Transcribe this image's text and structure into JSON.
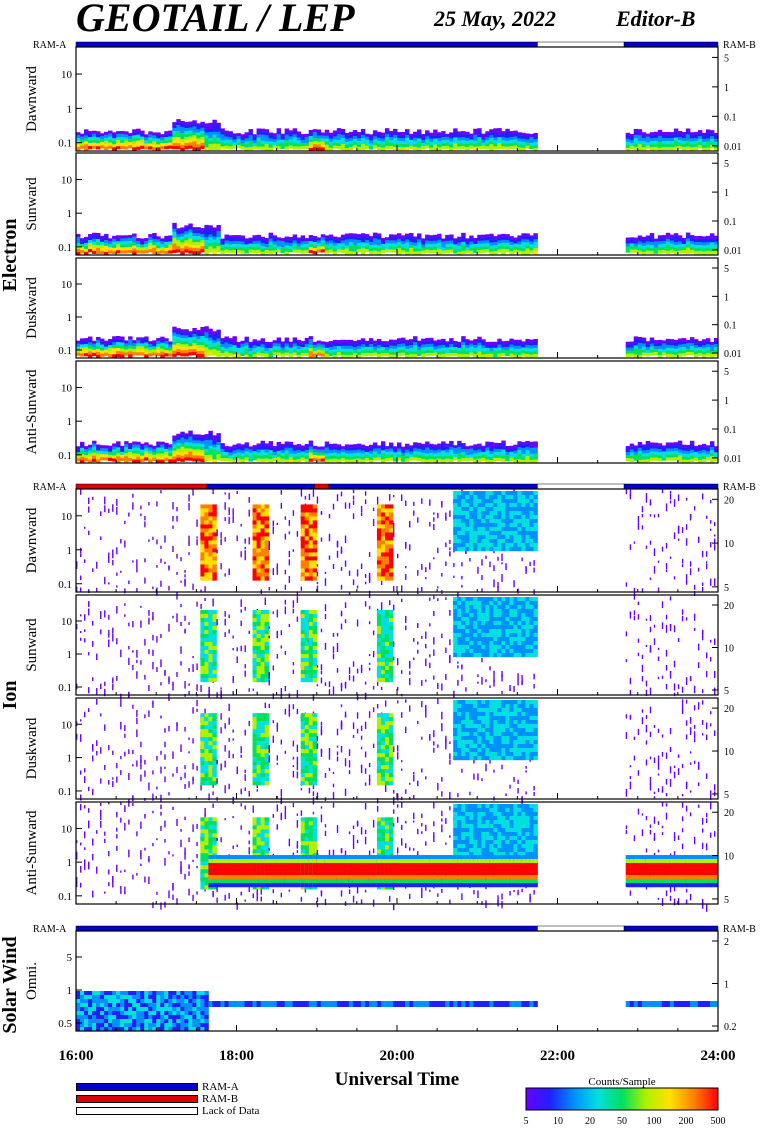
{
  "header": {
    "title": "GEOTAIL / LEP",
    "date": "25 May, 2022",
    "editor": "Editor-B"
  },
  "ram_labels": {
    "left": "RAM-A",
    "right": "RAM-B"
  },
  "group_labels": [
    "Electron",
    "Ion",
    "Solar Wind"
  ],
  "x_axis": {
    "label": "Universal Time",
    "ticks": [
      "16:00",
      "18:00",
      "20:00",
      "22:00",
      "24:00"
    ]
  },
  "legend": {
    "items": [
      {
        "label": "RAM-A",
        "color": "#0000d0"
      },
      {
        "label": "RAM-B",
        "color": "#e00000"
      },
      {
        "label": "Lack of Data",
        "color": "#ffffff"
      }
    ],
    "colorbar_title": "Counts/Sample",
    "colorbar_ticks": [
      "5",
      "10",
      "20",
      "50",
      "100",
      "200",
      "500"
    ]
  },
  "colors": {
    "ram_a": "#0000d0",
    "ram_b": "#e00000",
    "spectrum": [
      "#6a00ff",
      "#2020ff",
      "#0090ff",
      "#00e0e0",
      "#00e060",
      "#b0f000",
      "#ffe000",
      "#ff8000",
      "#ff0000"
    ]
  },
  "chart_data": {
    "type": "heatmap",
    "x_range_hours": [
      16,
      24
    ],
    "data_gaps_ut": [
      [
        21.75,
        22.83
      ]
    ],
    "panels": [
      {
        "group": "Electron",
        "label": "Dawnward",
        "left_ticks": [
          "10",
          "1",
          "0.1"
        ],
        "right_ticks": [
          "5",
          "1",
          "0.1",
          "0.01"
        ],
        "ylim": [
          0.08,
          40
        ],
        "yscale": "log"
      },
      {
        "group": "Electron",
        "label": "Sunward",
        "left_ticks": [
          "10",
          "1",
          "0.1"
        ],
        "right_ticks": [
          "5",
          "1",
          "0.1",
          "0.01"
        ],
        "ylim": [
          0.08,
          40
        ],
        "yscale": "log"
      },
      {
        "group": "Electron",
        "label": "Duskward",
        "left_ticks": [
          "10",
          "1",
          "0.1"
        ],
        "right_ticks": [
          "5",
          "1",
          "0.1",
          "0.01"
        ],
        "ylim": [
          0.08,
          40
        ],
        "yscale": "log"
      },
      {
        "group": "Electron",
        "label": "Anti-Sunward",
        "left_ticks": [
          "10",
          "1",
          "0.1"
        ],
        "right_ticks": [
          "5",
          "1",
          "0.1",
          "0.01"
        ],
        "ylim": [
          0.08,
          40
        ],
        "yscale": "log"
      },
      {
        "group": "Ion",
        "label": "Dawnward",
        "left_ticks": [
          "10",
          "1",
          "0.1"
        ],
        "right_ticks": [
          "20",
          "10",
          "5"
        ],
        "ylim": [
          0.08,
          40
        ],
        "yscale": "log"
      },
      {
        "group": "Ion",
        "label": "Sunward",
        "left_ticks": [
          "10",
          "1",
          "0.1"
        ],
        "right_ticks": [
          "20",
          "10",
          "5"
        ],
        "ylim": [
          0.08,
          40
        ],
        "yscale": "log"
      },
      {
        "group": "Ion",
        "label": "Duskward",
        "left_ticks": [
          "10",
          "1",
          "0.1"
        ],
        "right_ticks": [
          "20",
          "10",
          "5"
        ],
        "ylim": [
          0.08,
          40
        ],
        "yscale": "log"
      },
      {
        "group": "Ion",
        "label": "Anti-Sunward",
        "left_ticks": [
          "10",
          "1",
          "0.1"
        ],
        "right_ticks": [
          "20",
          "10",
          "5"
        ],
        "ylim": [
          0.08,
          40
        ],
        "yscale": "log"
      },
      {
        "group": "Solar Wind",
        "label": "Omni.",
        "left_ticks": [
          "5",
          "1",
          "0.5"
        ],
        "right_ticks": [
          "2",
          "1",
          "0.2"
        ],
        "ylim": [
          0.2,
          10
        ],
        "yscale": "log"
      }
    ],
    "ram_bars": [
      {
        "segments": [
          {
            "from": 16,
            "to": 21.75,
            "mode": "RAM-A"
          },
          {
            "from": 21.75,
            "to": 22.83,
            "mode": "none"
          },
          {
            "from": 22.83,
            "to": 24,
            "mode": "RAM-A"
          }
        ]
      },
      {
        "segments": [
          {
            "from": 16,
            "to": 17.63,
            "mode": "RAM-B"
          },
          {
            "from": 17.63,
            "to": 18.97,
            "mode": "RAM-A"
          },
          {
            "from": 18.97,
            "to": 19.15,
            "mode": "RAM-B"
          },
          {
            "from": 19.15,
            "to": 21.75,
            "mode": "RAM-A"
          },
          {
            "from": 21.75,
            "to": 22.83,
            "mode": "none"
          },
          {
            "from": 22.83,
            "to": 24,
            "mode": "RAM-A"
          }
        ]
      },
      {
        "segments": [
          {
            "from": 16,
            "to": 21.75,
            "mode": "RAM-A"
          },
          {
            "from": 21.75,
            "to": 22.83,
            "mode": "none"
          },
          {
            "from": 22.83,
            "to": 24,
            "mode": "RAM-A"
          }
        ]
      }
    ]
  }
}
